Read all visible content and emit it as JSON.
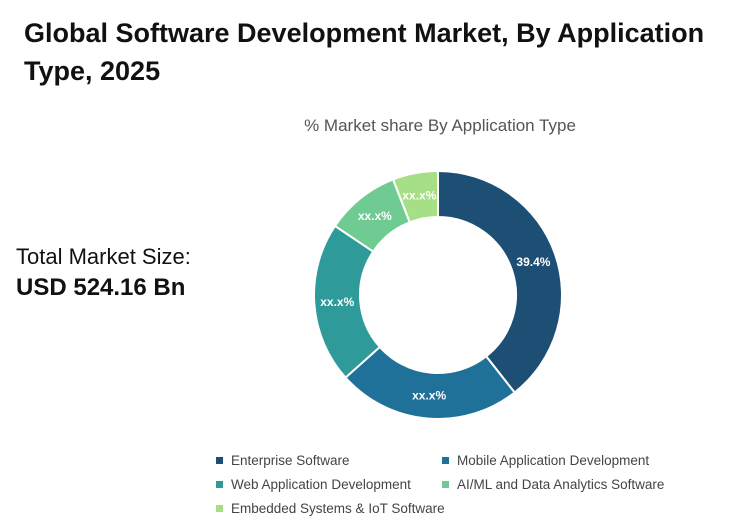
{
  "title": "Global Software Development Market, By Application Type, 2025",
  "total": {
    "label": "Total Market Size:",
    "value": "USD 524.16 Bn"
  },
  "chart_data": {
    "type": "pie",
    "subtitle": "% Market share By Application Type",
    "donut": true,
    "legend_position": "bottom",
    "segments": [
      {
        "name": "Enterprise Software",
        "value": 39.4,
        "label": "39.4%",
        "color": "#1d4e73"
      },
      {
        "name": "Mobile Application Development",
        "value": 24,
        "label": "xx.x%",
        "color": "#1f7199"
      },
      {
        "name": "Web Application Development",
        "value": 21,
        "label": "xx.x%",
        "color": "#2e9a9a"
      },
      {
        "name": "AI/ML and Data Analytics Software",
        "value": 9.7,
        "label": "xx.x%",
        "color": "#6fcb92"
      },
      {
        "name": "Embedded Systems & IoT Software",
        "value": 5.9,
        "label": "xx.x%",
        "color": "#a6df86"
      }
    ]
  }
}
